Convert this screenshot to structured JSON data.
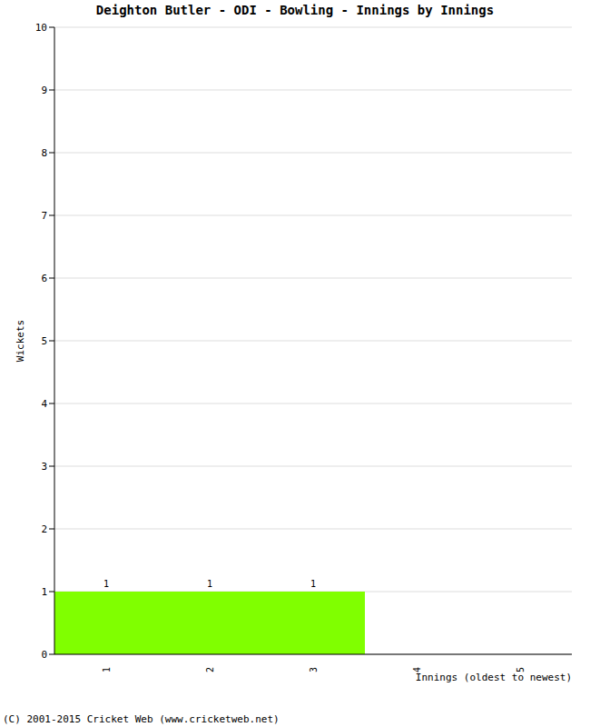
{
  "chart_data": {
    "type": "bar",
    "title": "Deighton Butler - ODI - Bowling - Innings by Innings",
    "x_label": "Innings (oldest to newest)",
    "y_label": "Wickets",
    "categories": [
      "1",
      "2",
      "3",
      "4",
      "5"
    ],
    "values": [
      1,
      1,
      1,
      0,
      0
    ],
    "color": "#80ff00",
    "ylim": [
      0,
      10
    ],
    "yticks": [
      0,
      1,
      2,
      3,
      4,
      5,
      6,
      7,
      8,
      9,
      10
    ],
    "grid": true,
    "data_labels": true
  },
  "footer": "(C) 2001-2015 Cricket Web (www.cricketweb.net)"
}
